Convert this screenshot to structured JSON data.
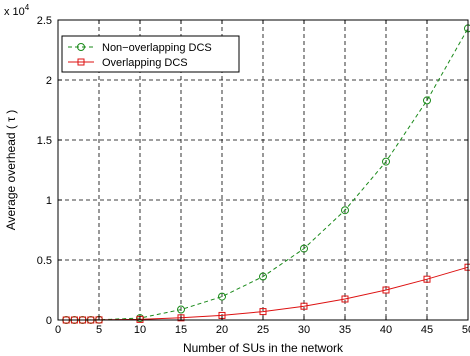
{
  "chart_data": {
    "type": "line",
    "xlabel": "Number of SUs in the network",
    "ylabel": "Average overhead ( τ )",
    "y_multiplier_label": "x 10",
    "y_multiplier_exponent": "4",
    "xlim": [
      0,
      50
    ],
    "ylim": [
      0,
      2.5
    ],
    "x_ticks": [
      0,
      5,
      10,
      15,
      20,
      25,
      30,
      35,
      40,
      45,
      50
    ],
    "x_tick_labels": [
      "0",
      "5",
      "10",
      "15",
      "20",
      "25",
      "30",
      "35",
      "40",
      "45",
      "50"
    ],
    "y_ticks": [
      0,
      0.5,
      1,
      1.5,
      2,
      2.5
    ],
    "y_tick_labels": [
      "0",
      "0.5",
      "1",
      "1.5",
      "2",
      "2.5"
    ],
    "grid": true,
    "legend_position": "top-left",
    "series": [
      {
        "name": "Non−overlapping DCS",
        "color": "#1a8a1a",
        "line_style": "dashed",
        "marker": "circle",
        "x": [
          1,
          2,
          3,
          4,
          5,
          10,
          15,
          20,
          25,
          30,
          35,
          40,
          45,
          50
        ],
        "y": [
          0,
          0,
          0,
          0.0005,
          0.002,
          0.016,
          0.087,
          0.195,
          0.362,
          0.595,
          0.915,
          1.32,
          1.83,
          2.43
        ]
      },
      {
        "name": "Overlapping DCS",
        "color": "#dd1111",
        "line_style": "solid",
        "marker": "square",
        "x": [
          1,
          2,
          3,
          4,
          5,
          10,
          15,
          20,
          25,
          30,
          35,
          40,
          45,
          50
        ],
        "y": [
          0,
          0,
          0,
          0,
          0.001,
          0.005,
          0.018,
          0.038,
          0.07,
          0.115,
          0.175,
          0.25,
          0.34,
          0.44
        ]
      }
    ]
  }
}
